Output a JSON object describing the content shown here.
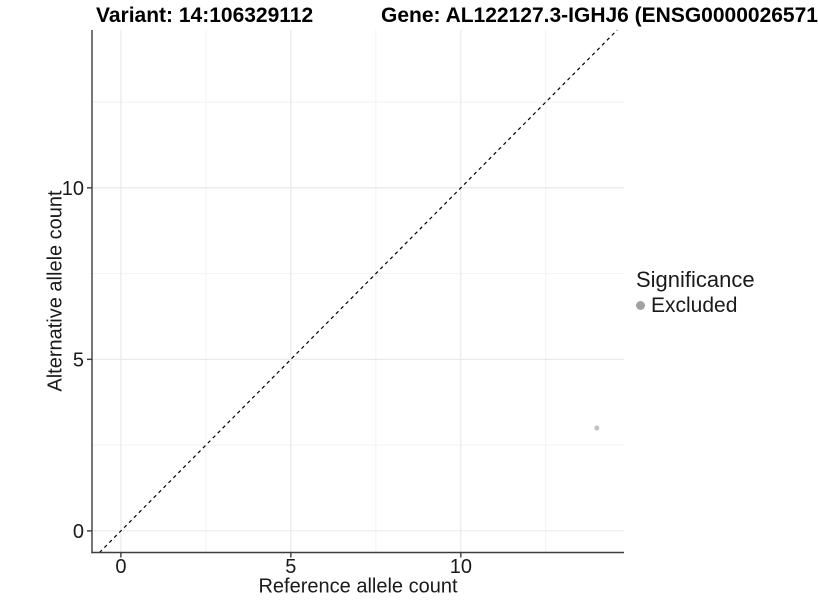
{
  "colors": {
    "background": "#ffffff",
    "grid_major": "#e7e7e7",
    "grid_minor": "#f2f2f2",
    "axis_line": "#3c3c3c",
    "tick_text": "#1a1a1a",
    "reference_line": "#000000",
    "point": "#c3c3c3",
    "legend_marker": "#a2a2a2"
  },
  "chart_data": {
    "type": "scatter",
    "titles": {
      "left": "Variant: 14:106329112",
      "right": "Gene: AL122127.3-IGHJ6 (ENSG0000026571"
    },
    "xlabel": "Reference allele count",
    "ylabel": "Alternative allele count",
    "xlim": [
      -0.85,
      14.8
    ],
    "ylim": [
      -0.63,
      14.6
    ],
    "xticks": [
      0,
      5,
      10
    ],
    "yticks": [
      0,
      5,
      10
    ],
    "xticks_minor": [
      2.5,
      7.5,
      12.5
    ],
    "yticks_minor": [
      2.5,
      7.5,
      12.5
    ],
    "grid": true,
    "series": [
      {
        "name": "Excluded",
        "color": "#c3c3c3",
        "points": [
          {
            "x": 14,
            "y": 3
          }
        ]
      }
    ],
    "reference_line": {
      "type": "identity",
      "style": "dashed",
      "color": "#000000",
      "dash": [
        3.5,
        3.5
      ]
    },
    "legend": {
      "title": "Significance",
      "position": "right",
      "items": [
        {
          "label": "Excluded",
          "color": "#a2a2a2",
          "shape": "dot"
        }
      ]
    }
  }
}
